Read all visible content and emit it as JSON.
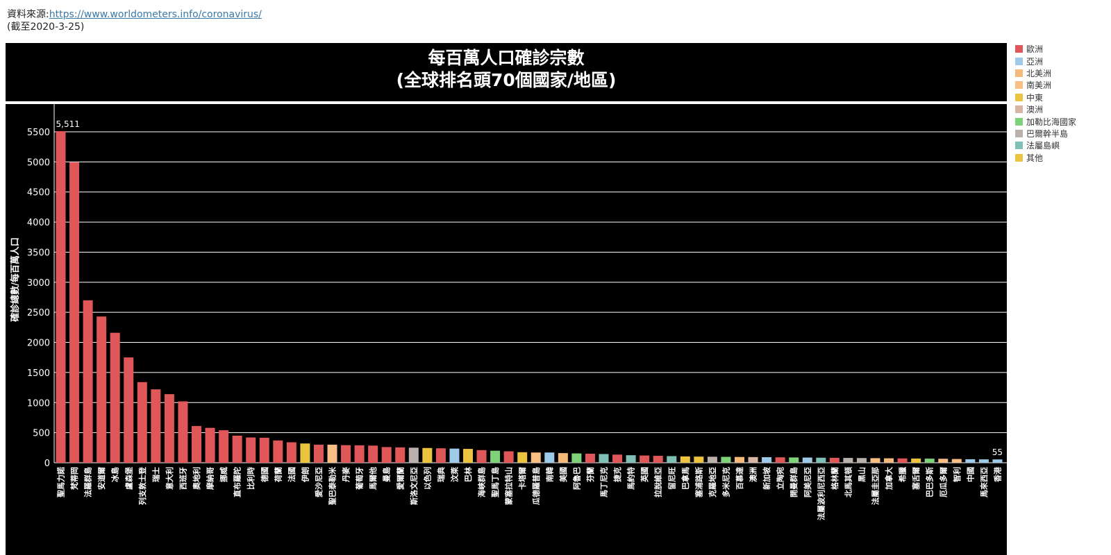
{
  "source": {
    "label": "資料來源:",
    "url_text": "https://www.worldometers.info/coronavirus/",
    "asof": "(截至2020-3-25)"
  },
  "chart_data": {
    "type": "bar",
    "title_line1": "每百萬人口確診宗數",
    "title_line2": "(全球排名頭70個國家/地區)",
    "ylabel": "確診總數/每百萬人口",
    "xlabel": "",
    "ylim": [
      0,
      5600
    ],
    "yticks": [
      0,
      500,
      1000,
      1500,
      2000,
      2500,
      3000,
      3500,
      4000,
      4500,
      5000,
      5500
    ],
    "grid": true,
    "legend_position": "right",
    "legend": [
      {
        "name": "歐洲",
        "color": "#e05759"
      },
      {
        "name": "亞洲",
        "color": "#9ecae9"
      },
      {
        "name": "北美洲",
        "color": "#f5b97a"
      },
      {
        "name": "南美洲",
        "color": "#f8be84"
      },
      {
        "name": "中東",
        "color": "#ebc33f"
      },
      {
        "name": "澳洲",
        "color": "#d8b5a5"
      },
      {
        "name": "加勒比海國家",
        "color": "#7fd17a"
      },
      {
        "name": "巴爾幹半島",
        "color": "#bab0ac"
      },
      {
        "name": "法屬島嶼",
        "color": "#7fbfb5"
      },
      {
        "name": "其他",
        "color": "#ebc33f"
      }
    ],
    "data_labels": [
      {
        "index": 0,
        "text": "5,511"
      },
      {
        "index": 69,
        "text": "55"
      }
    ],
    "bars": [
      {
        "label": "聖馬力諾",
        "value": 5511,
        "region": "歐洲"
      },
      {
        "label": "梵蒂岡",
        "value": 4994,
        "region": "歐洲"
      },
      {
        "label": "法羅群島",
        "value": 2700,
        "region": "歐洲"
      },
      {
        "label": "安道爾",
        "value": 2430,
        "region": "歐洲"
      },
      {
        "label": "冰島",
        "value": 2160,
        "region": "歐洲"
      },
      {
        "label": "盧森堡",
        "value": 1750,
        "region": "歐洲"
      },
      {
        "label": "列支敦士登",
        "value": 1340,
        "region": "歐洲"
      },
      {
        "label": "瑞士",
        "value": 1220,
        "region": "歐洲"
      },
      {
        "label": "意大利",
        "value": 1140,
        "region": "歐洲"
      },
      {
        "label": "西班牙",
        "value": 1020,
        "region": "歐洲"
      },
      {
        "label": "奧地利",
        "value": 610,
        "region": "歐洲"
      },
      {
        "label": "摩納哥",
        "value": 580,
        "region": "歐洲"
      },
      {
        "label": "挪威",
        "value": 540,
        "region": "歐洲"
      },
      {
        "label": "直布羅陀",
        "value": 450,
        "region": "歐洲"
      },
      {
        "label": "比利時",
        "value": 420,
        "region": "歐洲"
      },
      {
        "label": "德國",
        "value": 415,
        "region": "歐洲"
      },
      {
        "label": "荷蘭",
        "value": 370,
        "region": "歐洲"
      },
      {
        "label": "法國",
        "value": 340,
        "region": "歐洲"
      },
      {
        "label": "伊朗",
        "value": 320,
        "region": "中東"
      },
      {
        "label": "愛沙尼亞",
        "value": 300,
        "region": "歐洲"
      },
      {
        "label": "聖巴泰勒米",
        "value": 300,
        "region": "南美洲"
      },
      {
        "label": "丹麥",
        "value": 292,
        "region": "歐洲"
      },
      {
        "label": "葡萄牙",
        "value": 290,
        "region": "歐洲"
      },
      {
        "label": "馬爾他",
        "value": 285,
        "region": "歐洲"
      },
      {
        "label": "曼島",
        "value": 260,
        "region": "歐洲"
      },
      {
        "label": "愛爾蘭",
        "value": 255,
        "region": "歐洲"
      },
      {
        "label": "斯洛文尼亞",
        "value": 250,
        "region": "巴爾幹半島"
      },
      {
        "label": "以色列",
        "value": 245,
        "region": "中東"
      },
      {
        "label": "瑞典",
        "value": 240,
        "region": "歐洲"
      },
      {
        "label": "汶萊",
        "value": 235,
        "region": "亞洲"
      },
      {
        "label": "巴林",
        "value": 230,
        "region": "中東"
      },
      {
        "label": "海峽群島",
        "value": 210,
        "region": "歐洲"
      },
      {
        "label": "聖馬丁島",
        "value": 200,
        "region": "加勒比海國家"
      },
      {
        "label": "蒙塞拉特山",
        "value": 190,
        "region": "歐洲"
      },
      {
        "label": "卡塔爾",
        "value": 175,
        "region": "中東"
      },
      {
        "label": "瓜德羅普島",
        "value": 170,
        "region": "南美洲"
      },
      {
        "label": "南韓",
        "value": 170,
        "region": "亞洲"
      },
      {
        "label": "美國",
        "value": 160,
        "region": "北美洲"
      },
      {
        "label": "阿魯巴",
        "value": 155,
        "region": "加勒比海國家"
      },
      {
        "label": "芬蘭",
        "value": 150,
        "region": "歐洲"
      },
      {
        "label": "馬丁尼克",
        "value": 145,
        "region": "法屬島嶼"
      },
      {
        "label": "捷克",
        "value": 135,
        "region": "歐洲"
      },
      {
        "label": "馬約特",
        "value": 125,
        "region": "法屬島嶼"
      },
      {
        "label": "英國",
        "value": 120,
        "region": "歐洲"
      },
      {
        "label": "拉脫維亞",
        "value": 115,
        "region": "歐洲"
      },
      {
        "label": "留尼旺",
        "value": 110,
        "region": "法屬島嶼"
      },
      {
        "label": "巴拿馬",
        "value": 105,
        "region": "中東"
      },
      {
        "label": "塞浦路斯",
        "value": 102,
        "region": "中東"
      },
      {
        "label": "克羅地亞",
        "value": 100,
        "region": "巴爾幹半島"
      },
      {
        "label": "多米尼克",
        "value": 98,
        "region": "加勒比海國家"
      },
      {
        "label": "百慕達",
        "value": 96,
        "region": "北美洲"
      },
      {
        "label": "澳洲",
        "value": 94,
        "region": "澳洲"
      },
      {
        "label": "新加坡",
        "value": 92,
        "region": "亞洲"
      },
      {
        "label": "立陶宛",
        "value": 90,
        "region": "歐洲"
      },
      {
        "label": "開曼群島",
        "value": 88,
        "region": "加勒比海國家"
      },
      {
        "label": "阿美尼亞",
        "value": 86,
        "region": "亞洲"
      },
      {
        "label": "法屬波利尼西亞",
        "value": 84,
        "region": "法屬島嶼"
      },
      {
        "label": "格林蘭",
        "value": 82,
        "region": "歐洲"
      },
      {
        "label": "北馬其頓",
        "value": 80,
        "region": "巴爾幹半島"
      },
      {
        "label": "黑山",
        "value": 78,
        "region": "巴爾幹半島"
      },
      {
        "label": "法屬圭亞那",
        "value": 76,
        "region": "南美洲"
      },
      {
        "label": "加拿大",
        "value": 74,
        "region": "北美洲"
      },
      {
        "label": "希臘",
        "value": 72,
        "region": "歐洲"
      },
      {
        "label": "塞舌爾",
        "value": 70,
        "region": "其他"
      },
      {
        "label": "巴巴多斯",
        "value": 68,
        "region": "加勒比海國家"
      },
      {
        "label": "厄瓜多爾",
        "value": 66,
        "region": "南美洲"
      },
      {
        "label": "智利",
        "value": 62,
        "region": "南美洲"
      },
      {
        "label": "中國",
        "value": 58,
        "region": "亞洲"
      },
      {
        "label": "馬來西亞",
        "value": 56,
        "region": "亞洲"
      },
      {
        "label": "香港",
        "value": 55,
        "region": "亞洲"
      }
    ]
  }
}
